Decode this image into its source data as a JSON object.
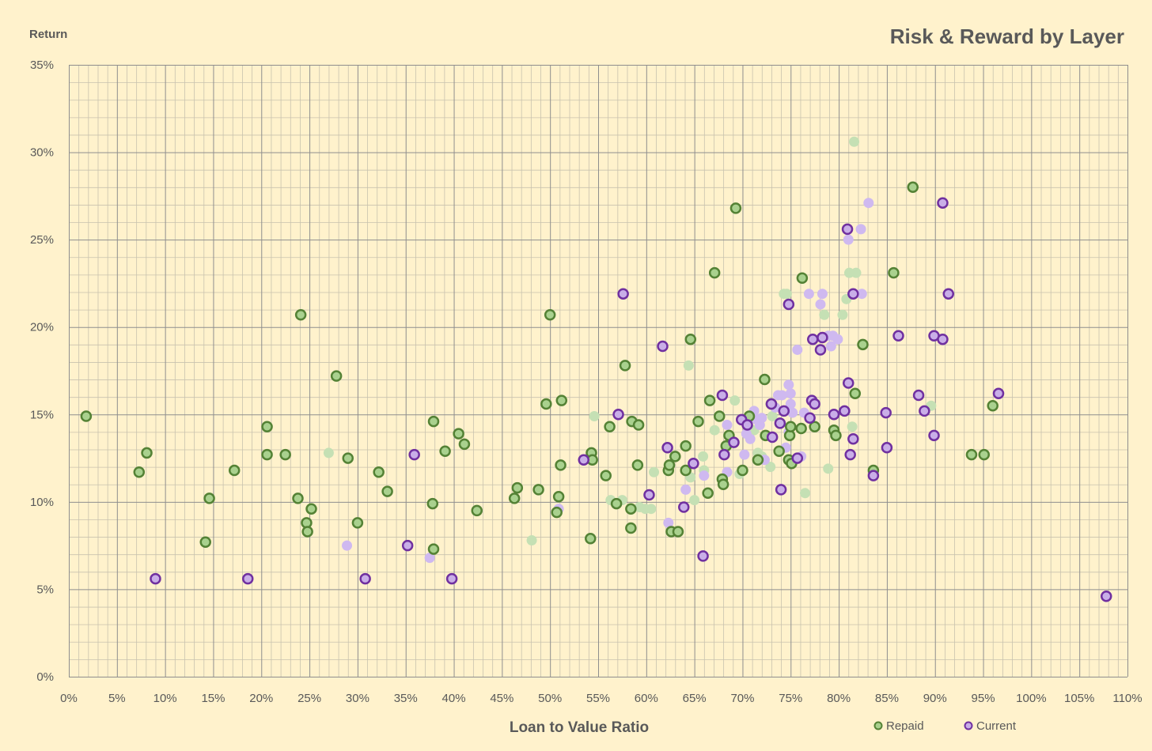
{
  "chart_data": {
    "type": "scatter",
    "title": "Risk & Reward by Layer",
    "xlabel": "Loan to Value Ratio",
    "ylabel": "Return",
    "xlim": [
      0,
      110
    ],
    "ylim": [
      0,
      35
    ],
    "x_tick_step": 5,
    "y_tick_step": 5,
    "minor_step": 1,
    "grid": true,
    "legend_position": "bottom-right",
    "x_tick_labels": [
      "0%",
      "5%",
      "10%",
      "15%",
      "20%",
      "25%",
      "30%",
      "35%",
      "40%",
      "45%",
      "50%",
      "55%",
      "60%",
      "65%",
      "70%",
      "75%",
      "80%",
      "85%",
      "90%",
      "95%",
      "100%",
      "105%",
      "110%"
    ],
    "y_tick_labels": [
      "0%",
      "5%",
      "10%",
      "15%",
      "20%",
      "25%",
      "30%",
      "35%"
    ],
    "series": [
      {
        "name": "Repaid",
        "stroke": "#548235",
        "fill": "#A9D18E",
        "faded_fill": "#C5E0B4",
        "points": [
          [
            1.8,
            14.9
          ],
          [
            7.3,
            11.7
          ],
          [
            8.1,
            12.8
          ],
          [
            14.2,
            7.7
          ],
          [
            14.6,
            10.2
          ],
          [
            17.2,
            11.8
          ],
          [
            20.6,
            14.3
          ],
          [
            20.6,
            12.7
          ],
          [
            22.5,
            12.7
          ],
          [
            24.1,
            20.7
          ],
          [
            23.8,
            10.2
          ],
          [
            24.7,
            8.8
          ],
          [
            24.8,
            8.3
          ],
          [
            25.2,
            9.6
          ],
          [
            27.8,
            17.2
          ],
          [
            29.0,
            12.5
          ],
          [
            30.0,
            8.8
          ],
          [
            32.2,
            11.7
          ],
          [
            33.1,
            10.6
          ],
          [
            37.9,
            14.6
          ],
          [
            37.8,
            9.9
          ],
          [
            37.9,
            7.3
          ],
          [
            39.1,
            12.9
          ],
          [
            40.5,
            13.9
          ],
          [
            41.1,
            13.3
          ],
          [
            42.4,
            9.5
          ],
          [
            46.3,
            10.2
          ],
          [
            46.6,
            10.8
          ],
          [
            48.8,
            10.7
          ],
          [
            49.6,
            15.6
          ],
          [
            50.0,
            20.7
          ],
          [
            50.7,
            9.4
          ],
          [
            50.9,
            10.3
          ],
          [
            51.1,
            12.1
          ],
          [
            51.2,
            15.8
          ],
          [
            54.2,
            7.9
          ],
          [
            54.3,
            12.8
          ],
          [
            54.4,
            12.4
          ],
          [
            55.8,
            11.5
          ],
          [
            56.2,
            14.3
          ],
          [
            56.9,
            9.9
          ],
          [
            57.8,
            17.8
          ],
          [
            58.4,
            9.6
          ],
          [
            58.4,
            8.5
          ],
          [
            58.5,
            14.6
          ],
          [
            59.1,
            12.1
          ],
          [
            59.2,
            14.4
          ],
          [
            62.3,
            11.8
          ],
          [
            62.4,
            12.1
          ],
          [
            62.6,
            8.3
          ],
          [
            63.0,
            12.6
          ],
          [
            63.3,
            8.3
          ],
          [
            64.1,
            11.8
          ],
          [
            64.1,
            13.2
          ],
          [
            64.6,
            19.3
          ],
          [
            65.4,
            14.6
          ],
          [
            66.4,
            10.5
          ],
          [
            66.6,
            15.8
          ],
          [
            67.1,
            23.1
          ],
          [
            67.6,
            14.9
          ],
          [
            67.9,
            11.3
          ],
          [
            68.0,
            11.0
          ],
          [
            68.3,
            13.2
          ],
          [
            68.6,
            13.8
          ],
          [
            69.3,
            26.8
          ],
          [
            70.0,
            11.8
          ],
          [
            70.7,
            14.9
          ],
          [
            71.6,
            12.4
          ],
          [
            72.3,
            17.0
          ],
          [
            72.4,
            13.8
          ],
          [
            73.0,
            15.6
          ],
          [
            73.8,
            12.9
          ],
          [
            74.8,
            12.4
          ],
          [
            74.9,
            13.8
          ],
          [
            75.0,
            14.3
          ],
          [
            75.1,
            12.2
          ],
          [
            76.1,
            14.2
          ],
          [
            76.2,
            22.8
          ],
          [
            77.5,
            14.3
          ],
          [
            79.5,
            14.1
          ],
          [
            79.7,
            13.8
          ],
          [
            81.7,
            16.2
          ],
          [
            82.5,
            19.0
          ],
          [
            83.6,
            11.8
          ],
          [
            85.7,
            23.1
          ],
          [
            87.7,
            28.0
          ],
          [
            93.8,
            12.7
          ],
          [
            95.1,
            12.7
          ],
          [
            96.0,
            15.5
          ]
        ],
        "faded_points": [
          [
            27.0,
            12.8
          ],
          [
            48.1,
            7.8
          ],
          [
            54.6,
            14.9
          ],
          [
            56.3,
            10.1
          ],
          [
            57.5,
            10.1
          ],
          [
            59.3,
            9.7
          ],
          [
            59.9,
            9.6
          ],
          [
            60.5,
            9.6
          ],
          [
            60.8,
            11.7
          ],
          [
            64.4,
            17.8
          ],
          [
            64.6,
            11.4
          ],
          [
            65.0,
            10.1
          ],
          [
            65.9,
            12.6
          ],
          [
            66.0,
            11.8
          ],
          [
            67.1,
            14.1
          ],
          [
            69.2,
            15.8
          ],
          [
            69.7,
            11.6
          ],
          [
            71.2,
            14.1
          ],
          [
            71.6,
            12.8
          ],
          [
            72.0,
            12.6
          ],
          [
            72.9,
            12.0
          ],
          [
            73.1,
            14.9
          ],
          [
            74.3,
            21.9
          ],
          [
            74.6,
            21.9
          ],
          [
            76.5,
            10.5
          ],
          [
            78.5,
            20.7
          ],
          [
            78.9,
            11.9
          ],
          [
            80.4,
            20.7
          ],
          [
            80.8,
            21.6
          ],
          [
            81.1,
            23.1
          ],
          [
            81.8,
            23.1
          ],
          [
            81.4,
            14.3
          ],
          [
            81.6,
            30.6
          ],
          [
            89.6,
            15.5
          ]
        ]
      },
      {
        "name": "Current",
        "stroke": "#7030A0",
        "fill": "#C9AEE8",
        "faded_fill": "#CFB9F0",
        "points": [
          [
            9.0,
            5.6
          ],
          [
            18.6,
            5.6
          ],
          [
            30.8,
            5.6
          ],
          [
            35.2,
            7.5
          ],
          [
            35.9,
            12.7
          ],
          [
            39.8,
            5.6
          ],
          [
            53.5,
            12.4
          ],
          [
            57.1,
            15.0
          ],
          [
            57.6,
            21.9
          ],
          [
            60.3,
            10.4
          ],
          [
            61.7,
            18.9
          ],
          [
            62.2,
            13.1
          ],
          [
            63.9,
            9.7
          ],
          [
            64.9,
            12.2
          ],
          [
            65.9,
            6.9
          ],
          [
            67.9,
            16.1
          ],
          [
            68.1,
            12.7
          ],
          [
            69.1,
            13.4
          ],
          [
            69.9,
            14.7
          ],
          [
            70.5,
            14.4
          ],
          [
            73.0,
            15.6
          ],
          [
            73.1,
            13.7
          ],
          [
            73.9,
            14.5
          ],
          [
            74.0,
            10.7
          ],
          [
            74.3,
            15.2
          ],
          [
            74.8,
            21.3
          ],
          [
            75.7,
            12.5
          ],
          [
            77.0,
            14.8
          ],
          [
            77.2,
            15.8
          ],
          [
            77.3,
            19.3
          ],
          [
            77.5,
            15.6
          ],
          [
            78.1,
            18.7
          ],
          [
            78.3,
            19.4
          ],
          [
            79.5,
            15.0
          ],
          [
            80.6,
            15.2
          ],
          [
            80.9,
            25.6
          ],
          [
            81.0,
            16.8
          ],
          [
            81.2,
            12.7
          ],
          [
            81.5,
            21.9
          ],
          [
            81.5,
            13.6
          ],
          [
            83.6,
            11.5
          ],
          [
            84.9,
            15.1
          ],
          [
            85.0,
            13.1
          ],
          [
            86.2,
            19.5
          ],
          [
            88.3,
            16.1
          ],
          [
            88.9,
            15.2
          ],
          [
            89.9,
            19.5
          ],
          [
            89.9,
            13.8
          ],
          [
            90.8,
            27.1
          ],
          [
            90.8,
            19.3
          ],
          [
            91.4,
            21.9
          ],
          [
            96.6,
            16.2
          ],
          [
            107.8,
            4.6
          ]
        ],
        "faded_points": [
          [
            28.9,
            7.5
          ],
          [
            37.5,
            6.8
          ],
          [
            50.9,
            9.6
          ],
          [
            62.3,
            8.8
          ],
          [
            64.1,
            10.7
          ],
          [
            66.0,
            11.5
          ],
          [
            68.4,
            11.7
          ],
          [
            68.4,
            14.4
          ],
          [
            70.2,
            12.7
          ],
          [
            70.4,
            13.9
          ],
          [
            70.8,
            13.6
          ],
          [
            71.2,
            15.2
          ],
          [
            71.5,
            14.7
          ],
          [
            71.8,
            14.4
          ],
          [
            72.0,
            14.8
          ],
          [
            72.3,
            12.4
          ],
          [
            73.4,
            15.4
          ],
          [
            73.7,
            16.1
          ],
          [
            74.1,
            16.1
          ],
          [
            74.5,
            13.1
          ],
          [
            74.8,
            14.0
          ],
          [
            74.8,
            16.7
          ],
          [
            75.0,
            16.2
          ],
          [
            75.0,
            15.6
          ],
          [
            75.2,
            15.1
          ],
          [
            75.7,
            18.7
          ],
          [
            76.1,
            12.6
          ],
          [
            76.4,
            15.1
          ],
          [
            76.9,
            21.9
          ],
          [
            78.1,
            21.3
          ],
          [
            78.3,
            21.9
          ],
          [
            78.9,
            19.5
          ],
          [
            79.2,
            18.9
          ],
          [
            79.4,
            19.5
          ],
          [
            79.9,
            19.3
          ],
          [
            81.0,
            25.0
          ],
          [
            82.3,
            25.6
          ],
          [
            82.4,
            21.9
          ],
          [
            83.1,
            27.1
          ]
        ]
      }
    ]
  },
  "colors": {
    "background": "#FFF2CC",
    "text": "#595959",
    "grid_major": "#8E8E8E",
    "grid_minor": "#C8C2AE"
  }
}
